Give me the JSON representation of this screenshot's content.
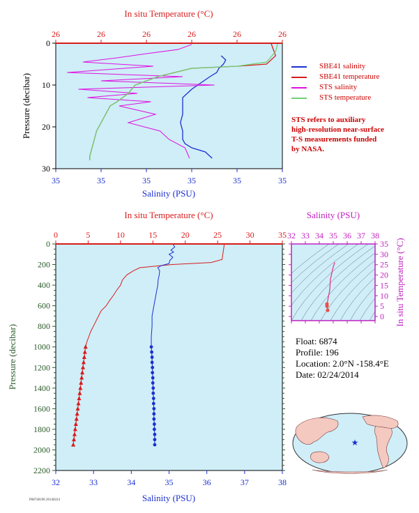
{
  "chart_data": [
    {
      "type": "line",
      "title": "",
      "top_axis_label": "In situ Temperature (°C)",
      "top_tick_labels": [
        "26",
        "26",
        "26",
        "26",
        "26",
        "26"
      ],
      "bottom_axis_label": "Salinity (PSU)",
      "bottom_tick_labels": [
        "35",
        "35",
        "35",
        "35",
        "35",
        "35"
      ],
      "ylabel": "Pressure (decibar)",
      "y_tick_labels": [
        "0",
        "10",
        "20",
        "30"
      ],
      "ylim": [
        30,
        0
      ],
      "series": [
        {
          "name": "SBE41 salinity",
          "color": "#1a2fd0",
          "x_frac": [
            0.73,
            0.75,
            0.74,
            0.72,
            0.71,
            0.68,
            0.64,
            0.6,
            0.56,
            0.56,
            0.56,
            0.55,
            0.56,
            0.56,
            0.57,
            0.6,
            0.66,
            0.69
          ],
          "pressure": [
            3,
            4,
            5,
            6,
            7,
            8,
            9.5,
            11,
            13,
            15,
            17,
            19,
            21,
            23,
            24,
            25,
            26,
            27.5
          ]
        },
        {
          "name": "SBE41 temperature",
          "color": "#d81b1b",
          "x_frac": [
            0.95,
            0.97,
            0.93,
            0.8,
            0.6,
            0.45,
            0.35,
            0.32,
            0.27,
            0.24,
            0.22,
            0.2,
            0.18,
            0.17,
            0.16,
            0.15,
            0.15
          ],
          "pressure": [
            0,
            3,
            5,
            5.5,
            6,
            8,
            10,
            12,
            14,
            15,
            17,
            19,
            21,
            23,
            25,
            27,
            28
          ]
        },
        {
          "name": "STS salinity",
          "color": "#e010e0",
          "x_frac": [
            0.6,
            0.54,
            0.4,
            0.27,
            0.12,
            0.43,
            0.05,
            0.56,
            0.2,
            0.7,
            0.1,
            0.36,
            0.14,
            0.42,
            0.28,
            0.44,
            0.32,
            0.46,
            0.5,
            0.57,
            0.59
          ],
          "pressure": [
            0.3,
            1.5,
            2.5,
            3.5,
            4.5,
            5.5,
            7,
            8,
            9,
            10,
            11,
            12,
            13,
            14,
            15,
            17,
            19,
            21,
            23,
            25,
            27.5
          ]
        },
        {
          "name": "STS temperature",
          "color": "#70d070",
          "x_frac": [
            0.98,
            0.97,
            0.93,
            0.8,
            0.6,
            0.45,
            0.35,
            0.32,
            0.27,
            0.24,
            0.22,
            0.2,
            0.18,
            0.17,
            0.16,
            0.15,
            0.15
          ],
          "pressure": [
            0,
            2,
            4.5,
            5.5,
            6,
            8,
            10,
            12,
            14,
            15,
            17,
            19,
            21,
            23,
            25,
            27,
            28
          ]
        }
      ]
    },
    {
      "type": "line",
      "title": "",
      "top_axis_label": "In situ Temperature (°C)",
      "bottom_axis_label": "Salinity (PSU)",
      "ylabel": "Pressure (decibar)",
      "xlim_temperature": [
        0,
        35
      ],
      "xlim_salinity": [
        32,
        38
      ],
      "ylim": [
        2200,
        0
      ],
      "temperature_ticks": [
        0,
        5,
        10,
        15,
        20,
        25,
        30,
        35
      ],
      "salinity_ticks": [
        32,
        33,
        34,
        35,
        36,
        37,
        38
      ],
      "pressure_ticks": [
        0,
        200,
        400,
        600,
        800,
        1000,
        1200,
        1400,
        1600,
        1800,
        2000,
        2200
      ],
      "series": [
        {
          "name": "Temperature",
          "color": "#d81b1b",
          "marker": "triangle",
          "pressure": [
            0,
            20,
            60,
            100,
            150,
            180,
            200,
            230,
            260,
            300,
            350,
            400,
            450,
            500,
            550,
            600,
            650,
            700,
            750,
            800,
            850,
            900,
            950,
            1000
          ],
          "value": [
            26.0,
            26.0,
            25.9,
            25.8,
            25.7,
            24.0,
            18.0,
            13.0,
            12.0,
            11.0,
            10.3,
            10.0,
            9.4,
            8.9,
            8.3,
            7.8,
            7.0,
            6.6,
            6.2,
            5.8,
            5.4,
            5.1,
            4.8,
            4.6
          ],
          "marker_pressure": [
            1000,
            1050,
            1100,
            1150,
            1200,
            1250,
            1300,
            1350,
            1400,
            1450,
            1500,
            1550,
            1600,
            1650,
            1700,
            1750,
            1800,
            1850,
            1900,
            1950
          ],
          "marker_value": [
            4.6,
            4.5,
            4.4,
            4.3,
            4.2,
            4.1,
            4.0,
            3.9,
            3.8,
            3.7,
            3.6,
            3.5,
            3.4,
            3.3,
            3.2,
            3.1,
            3.0,
            2.9,
            2.8,
            2.7
          ]
        },
        {
          "name": "Salinity",
          "color": "#1a2fd0",
          "marker": "circle",
          "pressure": [
            0,
            30,
            60,
            80,
            100,
            130,
            160,
            190,
            210,
            230,
            260,
            300,
            350,
            400,
            500,
            600,
            700,
            800,
            900,
            1000
          ],
          "value": [
            35.1,
            35.15,
            35.05,
            35.12,
            35.0,
            35.1,
            35.02,
            35.0,
            34.8,
            34.7,
            34.75,
            34.74,
            34.71,
            34.7,
            34.65,
            34.6,
            34.55,
            34.55,
            34.53,
            34.53
          ],
          "marker_pressure": [
            1000,
            1050,
            1100,
            1150,
            1200,
            1250,
            1300,
            1350,
            1400,
            1450,
            1500,
            1550,
            1600,
            1650,
            1700,
            1750,
            1800,
            1850,
            1900,
            1950
          ],
          "marker_value": [
            34.53,
            34.54,
            34.55,
            34.55,
            34.56,
            34.56,
            34.57,
            34.57,
            34.58,
            34.58,
            34.59,
            34.59,
            34.6,
            34.6,
            34.6,
            34.61,
            34.61,
            34.62,
            34.62,
            34.62
          ]
        }
      ]
    },
    {
      "type": "scatter",
      "title": "",
      "top_axis_label": "Salinity (PSU)",
      "right_axis_label": "In situ Temperature (°C)",
      "xlim": [
        32,
        38
      ],
      "ylim": [
        -2,
        35
      ],
      "x_ticks": [
        32,
        33,
        34,
        35,
        36,
        37,
        38
      ],
      "y_ticks": [
        0,
        5,
        10,
        15,
        20,
        25,
        30,
        35
      ],
      "series": [
        {
          "name": "T-S",
          "color": "#e0308a",
          "salinity": [
            35.05,
            35.1,
            35.0,
            34.8,
            34.75,
            34.7,
            34.65,
            34.6,
            34.55,
            34.55,
            34.6
          ],
          "temperature": [
            26,
            25.8,
            24,
            18,
            13,
            11,
            9.5,
            7.5,
            6,
            5,
            3
          ]
        }
      ]
    }
  ],
  "legend": {
    "items": [
      {
        "label": "SBE41 salinity",
        "color": "#1a2fd0"
      },
      {
        "label": "SBE41 temperature",
        "color": "#d81b1b"
      },
      {
        "label": "STS salinity",
        "color": "#e010e0"
      },
      {
        "label": "STS temperature",
        "color": "#70d070"
      }
    ]
  },
  "note": {
    "lines": [
      "STS refers to auxiliary",
      "high-resolution near-surface",
      "T-S measurements funded",
      "by NASA."
    ]
  },
  "info": {
    "float": "Float:  6874",
    "profile": "Profile:  196",
    "location": "Location:  2.0°N  -158.4°E",
    "date": "Date:  02/24/2014"
  },
  "footer": {
    "tag": "P68740196 20140224"
  },
  "colors": {
    "plot_bg": "#cfeef8",
    "temperature": "#d81b1b",
    "salinity": "#1a2fd0",
    "ts_axis": "#c020c0",
    "pressure_label": "#2a5a2a"
  },
  "map": {
    "icon": "world-map-icon",
    "float_marker": "star"
  }
}
